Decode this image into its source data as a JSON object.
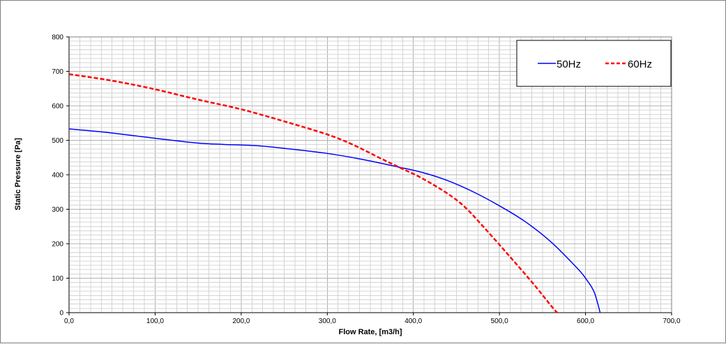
{
  "chart_data": {
    "type": "line",
    "xlabel": "Flow Rate, [m3/h]",
    "ylabel": "Static Pressure [Pa]",
    "xlim": [
      0,
      700
    ],
    "ylim": [
      0,
      800
    ],
    "x_ticks": [
      "0,0",
      "100,0",
      "200,0",
      "300,0",
      "400,0",
      "500,0",
      "600,0",
      "700,0"
    ],
    "y_ticks": [
      "0",
      "100",
      "200",
      "300",
      "400",
      "500",
      "600",
      "700",
      "800"
    ],
    "grid": true,
    "legend_position": "top-right",
    "series": [
      {
        "name": "50Hz",
        "color": "#0000ff",
        "style": "solid",
        "points": [
          [
            0,
            533
          ],
          [
            40,
            524
          ],
          [
            80,
            512
          ],
          [
            120,
            500
          ],
          [
            150,
            492
          ],
          [
            180,
            488
          ],
          [
            220,
            484
          ],
          [
            260,
            474
          ],
          [
            300,
            462
          ],
          [
            340,
            445
          ],
          [
            380,
            424
          ],
          [
            410,
            407
          ],
          [
            440,
            383
          ],
          [
            470,
            350
          ],
          [
            500,
            310
          ],
          [
            530,
            264
          ],
          [
            560,
            205
          ],
          [
            590,
            130
          ],
          [
            600,
            100
          ],
          [
            610,
            60
          ],
          [
            617,
            0
          ]
        ]
      },
      {
        "name": "60Hz",
        "color": "#ff0000",
        "style": "dashed",
        "points": [
          [
            0,
            692
          ],
          [
            50,
            673
          ],
          [
            100,
            648
          ],
          [
            150,
            618
          ],
          [
            200,
            590
          ],
          [
            250,
            555
          ],
          [
            300,
            517
          ],
          [
            330,
            487
          ],
          [
            360,
            450
          ],
          [
            385,
            420
          ],
          [
            410,
            390
          ],
          [
            440,
            345
          ],
          [
            460,
            306
          ],
          [
            480,
            253
          ],
          [
            500,
            197
          ],
          [
            520,
            140
          ],
          [
            540,
            82
          ],
          [
            560,
            20
          ],
          [
            567,
            0
          ]
        ]
      }
    ]
  }
}
